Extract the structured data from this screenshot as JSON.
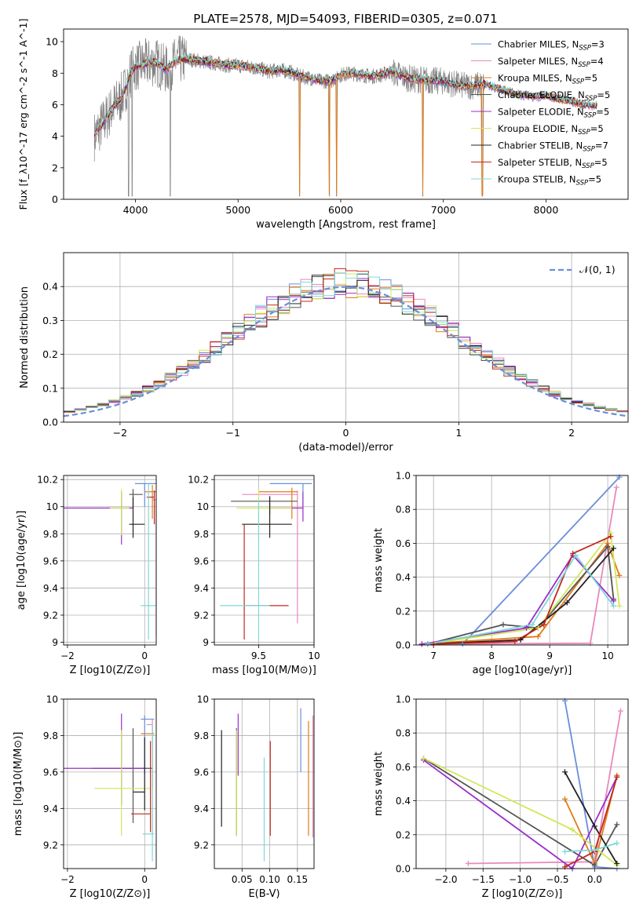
{
  "figure": {
    "title": "PLATE=2578, MJD=54093, FIBERID=0305, z=0.071",
    "colors": [
      "#6a8fd8",
      "#e889bd",
      "#e07b1a",
      "#555555",
      "#9b2ec9",
      "#cfe85a",
      "#222222",
      "#c1281d",
      "#7fd8d8"
    ]
  },
  "chart_data": [
    {
      "id": "spectrum",
      "type": "line",
      "xlabel": "wavelength [Angstrom, rest frame]",
      "ylabel": "Flux [f_λ10^-17 erg cm^-2 s^-1 A^-1]",
      "xlim": [
        3300,
        8800
      ],
      "ylim": [
        0,
        10.8
      ],
      "xticks": [
        4000,
        5000,
        6000,
        7000,
        8000
      ],
      "yticks": [
        0,
        2,
        4,
        6,
        8,
        10
      ],
      "legend_position": "upper right",
      "grid": false,
      "series": [
        {
          "name": "Chabrier MILES, N_SSP=3",
          "label_main": "Chabrier MILES, N",
          "label_sub": "SSP",
          "label_tail": "=3",
          "color": "#6a8fd8"
        },
        {
          "name": "Salpeter MILES, N_SSP=4",
          "label_main": "Salpeter MILES, N",
          "label_sub": "SSP",
          "label_tail": "=4",
          "color": "#e889bd"
        },
        {
          "name": "Kroupa MILES, N_SSP=5",
          "label_main": "Kroupa MILES, N",
          "label_sub": "SSP",
          "label_tail": "=5",
          "color": "#e07b1a"
        },
        {
          "name": "Chabrier ELODIE, N_SSP=5",
          "label_main": "Chabrier ELODIE, N",
          "label_sub": "SSP",
          "label_tail": "=5",
          "color": "#555555"
        },
        {
          "name": "Salpeter ELODIE, N_SSP=5",
          "label_main": "Salpeter ELODIE, N",
          "label_sub": "SSP",
          "label_tail": "=5",
          "color": "#9b2ec9"
        },
        {
          "name": "Kroupa ELODIE, N_SSP=5",
          "label_main": "Kroupa ELODIE, N",
          "label_sub": "SSP",
          "label_tail": "=5",
          "color": "#cfe85a"
        },
        {
          "name": "Chabrier STELIB, N_SSP=7",
          "label_main": "Chabrier STELIB, N",
          "label_sub": "SSP",
          "label_tail": "=7",
          "color": "#222222"
        },
        {
          "name": "Salpeter STELIB, N_SSP=5",
          "label_main": "Salpeter STELIB, N",
          "label_sub": "SSP",
          "label_tail": "=5",
          "color": "#c1281d"
        },
        {
          "name": "Kroupa STELIB, N_SSP=5",
          "label_main": "Kroupa STELIB, N",
          "label_sub": "SSP",
          "label_tail": "=5",
          "color": "#7fd8d8"
        }
      ],
      "model_profile": {
        "x": [
          3600,
          3650,
          3700,
          3750,
          3800,
          3850,
          3900,
          3950,
          4000,
          4100,
          4200,
          4300,
          4400,
          4500,
          4600,
          4700,
          4800,
          4900,
          5000,
          5100,
          5200,
          5300,
          5400,
          5500,
          5600,
          5700,
          5800,
          5900,
          6000,
          6100,
          6200,
          6300,
          6400,
          6500,
          6600,
          6700,
          6800,
          6900,
          7000,
          7100,
          7200,
          7300,
          7400,
          7500,
          7600,
          7700,
          7800,
          7900,
          8000,
          8100,
          8200,
          8300,
          8400,
          8500
        ],
        "y": [
          4.0,
          4.5,
          5.0,
          5.5,
          6.0,
          6.3,
          7.0,
          8.0,
          8.4,
          8.6,
          8.7,
          8.2,
          8.8,
          8.9,
          8.8,
          8.7,
          8.6,
          8.5,
          8.5,
          8.4,
          8.3,
          8.1,
          8.2,
          8.1,
          7.8,
          7.7,
          7.5,
          7.5,
          7.9,
          8.0,
          7.9,
          7.8,
          7.9,
          8.1,
          7.8,
          7.6,
          7.6,
          7.5,
          7.5,
          7.3,
          7.2,
          7.2,
          7.3,
          7.1,
          6.9,
          6.7,
          6.6,
          6.5,
          6.6,
          6.4,
          6.3,
          6.1,
          6.0,
          5.9
        ]
      },
      "observed_range": [
        3600,
        7400
      ],
      "absorption_lines": [
        3933,
        3968,
        4340,
        5600,
        5890,
        5960,
        6800,
        7380
      ]
    },
    {
      "id": "residuals",
      "type": "step",
      "xlabel": "(data-model)/error",
      "ylabel": "Normed distribution",
      "xlim": [
        -2.5,
        2.5
      ],
      "ylim": [
        0,
        0.5
      ],
      "xticks": [
        -2,
        -1,
        0,
        1,
        2
      ],
      "yticks": [
        0.0,
        0.1,
        0.2,
        0.3,
        0.4
      ],
      "grid": true,
      "legend_position": "upper right",
      "reference_curve": {
        "name": "N(0,1)",
        "label_text": "𝒩(0, 1)",
        "style": "dashed",
        "color": "#6a8fd8",
        "mean": 0,
        "sigma": 1
      },
      "bin_width": 0.1
    },
    {
      "id": "age-vs-Z",
      "type": "errorbar",
      "xlabel": "Z [log10(Z/Z⊙)]",
      "ylabel": "age  [log10(age/yr)]",
      "xlim": [
        -2.1,
        0.3
      ],
      "ylim": [
        8.98,
        10.23
      ],
      "xticks": [
        -2,
        0
      ],
      "yticks": [
        9.0,
        9.2,
        9.4,
        9.6,
        9.8,
        10.0,
        10.2
      ],
      "grid": true,
      "points": [
        {
          "x": 0.0,
          "xerr": [
            0.25,
            0.3
          ],
          "y": 10.17,
          "yerr": [
            0.17,
            0.0
          ]
        },
        {
          "x": 0.3,
          "xerr": [
            0.1,
            0.0
          ],
          "y": 10.05,
          "yerr": [
            1.0,
            0.06
          ]
        },
        {
          "x": 0.2,
          "xerr": [
            0.2,
            0.1
          ],
          "y": 10.11,
          "yerr": [
            0.2,
            0.05
          ]
        },
        {
          "x": -0.3,
          "xerr": [
            0.1,
            0.25
          ],
          "y": 10.09,
          "yerr": [
            0.1,
            0.04
          ]
        },
        {
          "x": -0.6,
          "xerr": [
            1.5,
            0.3
          ],
          "y": 9.99,
          "yerr": [
            0.27,
            0.12
          ]
        },
        {
          "x": -0.6,
          "xerr": [
            0.3,
            0.2
          ],
          "y": 9.99,
          "yerr": [
            0.2,
            0.14
          ]
        },
        {
          "x": -0.3,
          "xerr": [
            0.1,
            0.3
          ],
          "y": 9.87,
          "yerr": [
            0.1,
            0.2
          ]
        },
        {
          "x": 0.25,
          "xerr": [
            0.2,
            0.0
          ],
          "y": 10.07,
          "yerr": [
            0.2,
            0.05
          ]
        },
        {
          "x": 0.1,
          "xerr": [
            0.2,
            0.2
          ],
          "y": 9.27,
          "yerr": [
            0.25,
            0.9
          ]
        }
      ]
    },
    {
      "id": "age-vs-mass",
      "type": "errorbar",
      "xlabel": "mass [log10(M/M⊙)]",
      "ylabel": "",
      "xlim": [
        9.1,
        10.0
      ],
      "ylim": [
        8.98,
        10.23
      ],
      "xticks": [
        9.5,
        10.0
      ],
      "yticks": [
        9.0,
        9.2,
        9.4,
        9.6,
        9.8,
        10.0,
        10.2
      ],
      "grid": true,
      "points": [
        {
          "x": 9.9,
          "xerr": [
            0.3,
            0.08
          ],
          "y": 10.17,
          "yerr": [
            0.17,
            0.0
          ]
        },
        {
          "x": 9.85,
          "xerr": [
            0.5,
            0.0
          ],
          "y": 10.09,
          "yerr": [
            0.95,
            0.03
          ]
        },
        {
          "x": 9.8,
          "xerr": [
            0.3,
            0.05
          ],
          "y": 10.11,
          "yerr": [
            0.2,
            0.03
          ]
        },
        {
          "x": 9.6,
          "xerr": [
            0.35,
            0.25
          ],
          "y": 10.04,
          "yerr": [
            0.1,
            0.04
          ]
        },
        {
          "x": 9.9,
          "xerr": [
            0.3,
            0.0
          ],
          "y": 9.99,
          "yerr": [
            0.1,
            0.12
          ]
        },
        {
          "x": 9.5,
          "xerr": [
            0.2,
            0.3
          ],
          "y": 9.99,
          "yerr": [
            0.25,
            0.14
          ]
        },
        {
          "x": 9.6,
          "xerr": [
            0.25,
            0.2
          ],
          "y": 9.87,
          "yerr": [
            0.1,
            0.2
          ]
        },
        {
          "x": 9.37,
          "xerr": [
            0.0,
            0.4
          ],
          "y": 9.27,
          "yerr": [
            0.25,
            0.6
          ]
        },
        {
          "x": 9.5,
          "xerr": [
            0.35,
            0.1
          ],
          "y": 9.27,
          "yerr": [
            0.25,
            0.78
          ]
        }
      ]
    },
    {
      "id": "weight-vs-age",
      "type": "line",
      "xlabel": "age  [log10(age/yr)]",
      "ylabel": "mass weight",
      "xlim": [
        6.7,
        10.35
      ],
      "ylim": [
        0,
        1.0
      ],
      "xticks": [
        7,
        8,
        9,
        10
      ],
      "yticks": [
        0.0,
        0.2,
        0.4,
        0.6,
        0.8,
        1.0
      ],
      "grid": true,
      "series": [
        {
          "x": [
            7.5,
            10.2
          ],
          "y": [
            0.005,
            0.99
          ]
        },
        {
          "x": [
            7.0,
            9.7,
            10.15
          ],
          "y": [
            0.005,
            0.01,
            0.93
          ]
        },
        {
          "x": [
            6.8,
            8.8,
            10.0,
            10.2
          ],
          "y": [
            0.005,
            0.05,
            0.6,
            0.41
          ]
        },
        {
          "x": [
            6.9,
            8.2,
            8.8,
            10.0,
            10.1
          ],
          "y": [
            0.005,
            0.12,
            0.1,
            0.58,
            0.27
          ]
        },
        {
          "x": [
            6.8,
            8.6,
            9.4,
            10.1
          ],
          "y": [
            0.005,
            0.1,
            0.53,
            0.26
          ]
        },
        {
          "x": [
            6.9,
            8.8,
            10.05,
            10.2
          ],
          "y": [
            0.005,
            0.1,
            0.66,
            0.23
          ]
        },
        {
          "x": [
            6.9,
            8.5,
            9.3,
            10.1
          ],
          "y": [
            0.005,
            0.03,
            0.25,
            0.57
          ]
        },
        {
          "x": [
            7.0,
            8.4,
            8.9,
            9.4,
            10.05
          ],
          "y": [
            0.005,
            0.02,
            0.12,
            0.54,
            0.64
          ]
        },
        {
          "x": [
            6.9,
            8.7,
            9.45,
            10.1
          ],
          "y": [
            0.005,
            0.12,
            0.53,
            0.23
          ]
        }
      ]
    },
    {
      "id": "mass-vs-Z",
      "type": "errorbar",
      "xlabel": "Z [log10(Z/Z⊙)]",
      "ylabel": "mass [log10(M/M⊙)]",
      "xlim": [
        -2.1,
        0.3
      ],
      "ylim": [
        9.07,
        10.0
      ],
      "xticks": [
        -2,
        0
      ],
      "yticks": [
        9.2,
        9.4,
        9.6,
        9.8,
        10.0
      ],
      "grid": true,
      "points": [
        {
          "x": 0.0,
          "xerr": [
            0.1,
            0.25
          ],
          "y": 9.89,
          "yerr": [
            0.3,
            0.02
          ]
        },
        {
          "x": 0.2,
          "xerr": [
            0.15,
            0.0
          ],
          "y": 9.86,
          "yerr": [
            0.6,
            0.03
          ]
        },
        {
          "x": 0.2,
          "xerr": [
            0.3,
            0.05
          ],
          "y": 9.81,
          "yerr": [
            0.3,
            0.05
          ]
        },
        {
          "x": -0.3,
          "xerr": [
            1.05,
            0.5
          ],
          "y": 9.62,
          "yerr": [
            0.3,
            0.22
          ]
        },
        {
          "x": -0.6,
          "xerr": [
            1.5,
            0.65
          ],
          "y": 9.62,
          "yerr": [
            0.2,
            0.3
          ]
        },
        {
          "x": -0.6,
          "xerr": [
            0.7,
            0.75
          ],
          "y": 9.51,
          "yerr": [
            0.26,
            0.32
          ]
        },
        {
          "x": 0.0,
          "xerr": [
            0.3,
            0.0
          ],
          "y": 9.49,
          "yerr": [
            0.1,
            0.3
          ]
        },
        {
          "x": 0.15,
          "xerr": [
            0.5,
            0.0
          ],
          "y": 9.37,
          "yerr": [
            0.1,
            0.4
          ]
        },
        {
          "x": 0.2,
          "xerr": [
            0.25,
            0.05
          ],
          "y": 9.26,
          "yerr": [
            0.15,
            0.6
          ]
        }
      ]
    },
    {
      "id": "mass-vs-EBV",
      "type": "errorbar",
      "xlabel": "E(B-V)",
      "ylabel": "",
      "xlim": [
        0.0,
        0.18
      ],
      "ylim": [
        9.07,
        10.0
      ],
      "xticks": [
        0.05,
        0.1,
        0.15
      ],
      "xticklabels": [
        "0.05",
        "0.10",
        "0.15"
      ],
      "yticks": [
        9.2,
        9.4,
        9.6,
        9.8,
        10.0
      ],
      "grid": true,
      "points": [
        {
          "x": 0.156,
          "y": 9.78,
          "yerr": [
            0.18,
            0.17
          ]
        },
        {
          "x": 0.178,
          "y": 9.57,
          "yerr": [
            0.33,
            0.34
          ]
        },
        {
          "x": 0.17,
          "y": 9.55,
          "yerr": [
            0.3,
            0.33
          ]
        },
        {
          "x": 0.04,
          "y": 9.57,
          "yerr": [
            0.32,
            0.27
          ]
        },
        {
          "x": 0.043,
          "y": 9.78,
          "yerr": [
            0.2,
            0.14
          ]
        },
        {
          "x": 0.04,
          "y": 9.53,
          "yerr": [
            0.28,
            0.3
          ]
        },
        {
          "x": 0.013,
          "y": 9.57,
          "yerr": [
            0.27,
            0.26
          ]
        },
        {
          "x": 0.101,
          "y": 9.51,
          "yerr": [
            0.26,
            0.26
          ]
        },
        {
          "x": 0.09,
          "y": 9.39,
          "yerr": [
            0.28,
            0.29
          ]
        }
      ]
    },
    {
      "id": "weight-vs-Z",
      "type": "line",
      "xlabel": "Z [log10(Z/Z⊙)]",
      "ylabel": "mass weight",
      "xlim": [
        -2.4,
        0.45
      ],
      "ylim": [
        0,
        1.0
      ],
      "xticks": [
        -2.0,
        -1.5,
        -1.0,
        -0.5,
        0.0
      ],
      "xticklabels": [
        "−2.0",
        "−1.5",
        "−1.0",
        "−0.5",
        "0.0"
      ],
      "yticks": [
        0.0,
        0.2,
        0.4,
        0.6,
        0.8,
        1.0
      ],
      "grid": true,
      "series": [
        {
          "x": [
            -0.4,
            0.0,
            0.3
          ],
          "y": [
            0.99,
            0.01,
            0.0
          ]
        },
        {
          "x": [
            -1.7,
            0.0,
            0.35
          ],
          "y": [
            0.03,
            0.04,
            0.93
          ]
        },
        {
          "x": [
            -0.4,
            0.0,
            0.3
          ],
          "y": [
            0.41,
            0.03,
            0.55
          ]
        },
        {
          "x": [
            -2.3,
            0.0,
            0.3
          ],
          "y": [
            0.65,
            0.02,
            0.26
          ]
        },
        {
          "x": [
            -2.3,
            -0.3,
            0.3
          ],
          "y": [
            0.64,
            0.0,
            0.54
          ]
        },
        {
          "x": [
            -2.3,
            -0.3,
            0.3
          ],
          "y": [
            0.65,
            0.23,
            0.02
          ]
        },
        {
          "x": [
            -0.4,
            0.0,
            0.3
          ],
          "y": [
            0.57,
            0.25,
            0.03
          ]
        },
        {
          "x": [
            -0.4,
            0.0,
            0.3
          ],
          "y": [
            0.01,
            0.1,
            0.54
          ]
        },
        {
          "x": [
            -0.4,
            0.0,
            0.3
          ],
          "y": [
            0.1,
            0.11,
            0.15
          ]
        }
      ]
    }
  ]
}
